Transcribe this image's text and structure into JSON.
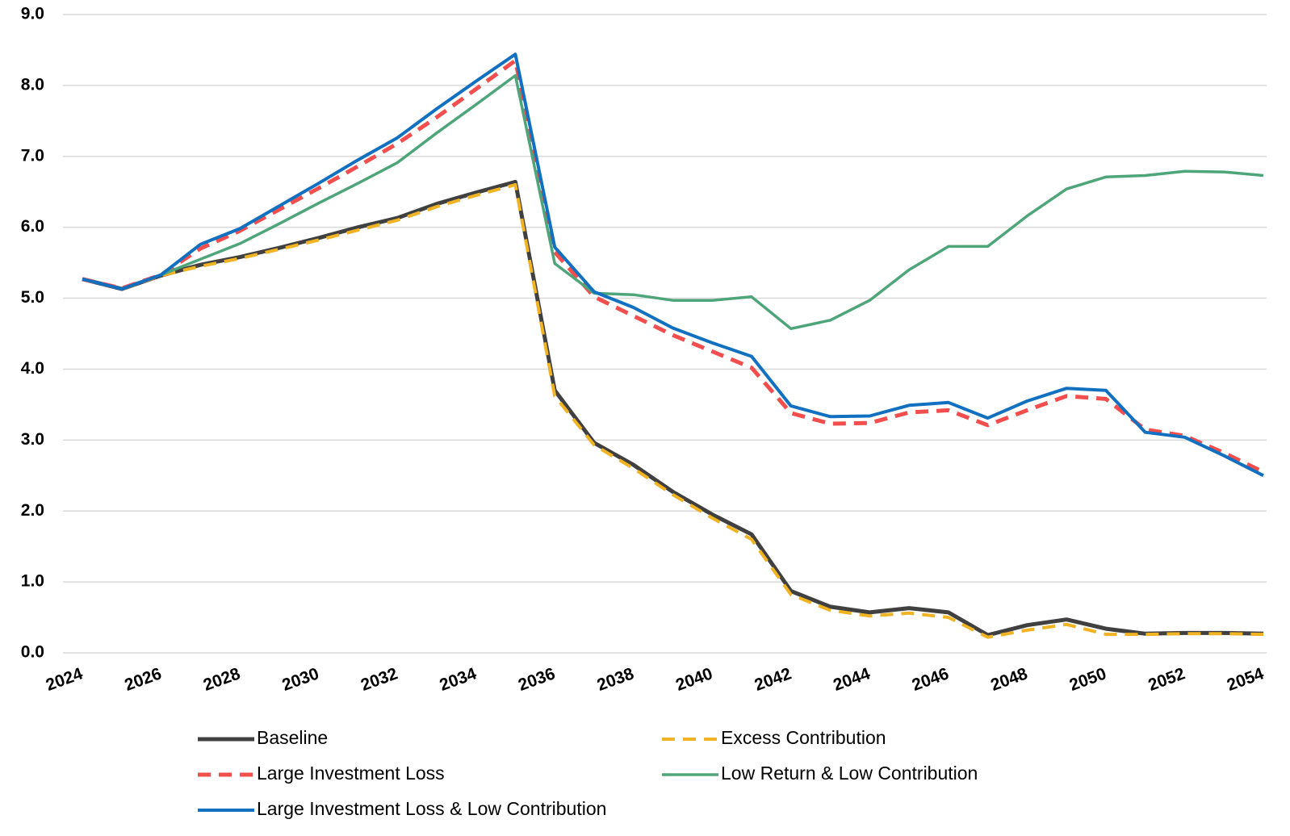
{
  "chart_data": {
    "type": "line",
    "x": [
      2024,
      2025,
      2026,
      2027,
      2028,
      2029,
      2030,
      2031,
      2032,
      2033,
      2034,
      2035,
      2036,
      2037,
      2038,
      2039,
      2040,
      2041,
      2042,
      2043,
      2044,
      2045,
      2046,
      2047,
      2048,
      2049,
      2050,
      2051,
      2052,
      2053,
      2054
    ],
    "xlim": [
      2024,
      2054
    ],
    "xticks": [
      2024,
      2026,
      2028,
      2030,
      2032,
      2034,
      2036,
      2038,
      2040,
      2042,
      2044,
      2046,
      2048,
      2050,
      2052,
      2054
    ],
    "ylim": [
      0,
      9
    ],
    "yticks": [
      {
        "value": 0,
        "label": "0.0"
      },
      {
        "value": 1,
        "label": "1.0"
      },
      {
        "value": 2,
        "label": "2.0"
      },
      {
        "value": 3,
        "label": "3.0"
      },
      {
        "value": 4,
        "label": "4.0"
      },
      {
        "value": 5,
        "label": "5.0"
      },
      {
        "value": 6,
        "label": "6.0"
      },
      {
        "value": 7,
        "label": "7.0"
      },
      {
        "value": 8,
        "label": "8.0"
      },
      {
        "value": 9,
        "label": "9.0"
      }
    ],
    "grid": true,
    "legend": "bottom",
    "series": [
      {
        "name": "Baseline",
        "color": "#404040",
        "style": "solid",
        "line_width": 5,
        "values": [
          5.27,
          5.13,
          5.32,
          5.47,
          5.58,
          5.71,
          5.85,
          6.0,
          6.13,
          6.33,
          6.49,
          6.64,
          3.7,
          2.96,
          2.65,
          2.27,
          1.95,
          1.67,
          0.87,
          0.65,
          0.57,
          0.63,
          0.57,
          0.25,
          0.39,
          0.47,
          0.34,
          0.27,
          0.28,
          0.28,
          0.27
        ]
      },
      {
        "name": "Excess Contribution",
        "color": "#f0b323",
        "style": "dashed",
        "line_width": 4,
        "values": [
          5.27,
          5.13,
          5.32,
          5.45,
          5.56,
          5.69,
          5.82,
          5.96,
          6.1,
          6.29,
          6.45,
          6.6,
          3.62,
          2.93,
          2.6,
          2.23,
          1.9,
          1.6,
          0.82,
          0.6,
          0.52,
          0.56,
          0.5,
          0.22,
          0.32,
          0.4,
          0.26,
          0.26,
          0.27,
          0.27,
          0.26
        ]
      },
      {
        "name": "Large Investment Loss",
        "color": "#f24e4e",
        "style": "dashed",
        "line_width": 5,
        "values": [
          5.27,
          5.14,
          5.33,
          5.7,
          5.95,
          6.25,
          6.55,
          6.86,
          7.18,
          7.55,
          7.95,
          8.35,
          5.65,
          5.02,
          4.75,
          4.48,
          4.25,
          4.02,
          3.38,
          3.23,
          3.24,
          3.39,
          3.42,
          3.21,
          3.42,
          3.62,
          3.58,
          3.15,
          3.06,
          2.82,
          2.55
        ]
      },
      {
        "name": "Low Return & Low Contribution",
        "color": "#4ea57a",
        "style": "solid",
        "line_width": 3.5,
        "values": [
          5.27,
          5.13,
          5.33,
          5.55,
          5.77,
          6.05,
          6.34,
          6.62,
          6.91,
          7.33,
          7.73,
          8.14,
          5.49,
          5.07,
          5.05,
          4.97,
          4.97,
          5.02,
          4.57,
          4.69,
          4.97,
          5.4,
          5.73,
          5.73,
          6.16,
          6.54,
          6.71,
          6.73,
          6.79,
          6.78,
          6.73
        ]
      },
      {
        "name": "Large Investment Loss & Low Contribution",
        "color": "#1170c0",
        "style": "solid",
        "line_width": 4,
        "values": [
          5.27,
          5.13,
          5.33,
          5.76,
          5.98,
          6.3,
          6.62,
          6.95,
          7.26,
          7.67,
          8.06,
          8.44,
          5.72,
          5.09,
          4.87,
          4.58,
          4.37,
          4.18,
          3.48,
          3.33,
          3.34,
          3.49,
          3.53,
          3.31,
          3.55,
          3.73,
          3.7,
          3.11,
          3.04,
          2.78,
          2.5
        ]
      }
    ]
  }
}
